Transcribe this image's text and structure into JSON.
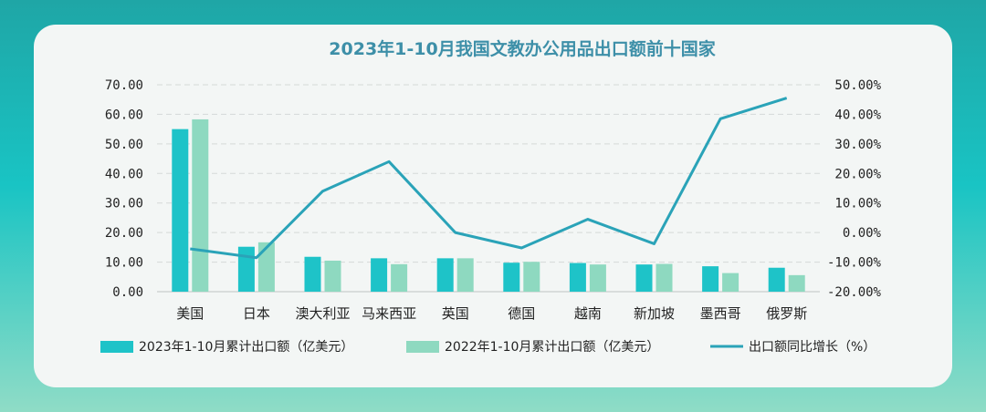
{
  "chart_data": {
    "type": "bar",
    "title": "2023年1-10月我国文教办公用品出口额前十国家",
    "categories": [
      "美国",
      "日本",
      "澳大利亚",
      "马来西亚",
      "英国",
      "德国",
      "越南",
      "新加坡",
      "墨西哥",
      "俄罗斯"
    ],
    "series": [
      {
        "name": "2023年1-10月累计出口额（亿美元）",
        "type": "bar",
        "axis": "left",
        "color": "#1ec3c8",
        "values": [
          55.0,
          15.2,
          11.8,
          11.3,
          11.3,
          9.8,
          9.7,
          9.2,
          8.6,
          8.1
        ]
      },
      {
        "name": "2022年1-10月累计出口额（亿美元）",
        "type": "bar",
        "axis": "left",
        "color": "#8ed9c0",
        "values": [
          58.3,
          16.7,
          10.5,
          9.3,
          11.3,
          10.1,
          9.2,
          9.4,
          6.3,
          5.6
        ]
      },
      {
        "name": "出口额同比增长（%）",
        "type": "line",
        "axis": "right",
        "color": "#2aa3b8",
        "values": [
          -5.5,
          -8.5,
          14.0,
          24.0,
          0.0,
          -5.2,
          4.5,
          -3.8,
          38.5,
          45.5
        ]
      }
    ],
    "y_left": {
      "min": 0,
      "max": 70,
      "ticks": [
        "0.00",
        "10.00",
        "20.00",
        "30.00",
        "40.00",
        "50.00",
        "60.00",
        "70.00"
      ]
    },
    "y_right": {
      "min": -20,
      "max": 50,
      "ticks": [
        "-20.00%",
        "-10.00%",
        "0.00%",
        "10.00%",
        "20.00%",
        "30.00%",
        "40.00%",
        "50.00%"
      ]
    },
    "grid": true,
    "legend_position": "bottom"
  }
}
